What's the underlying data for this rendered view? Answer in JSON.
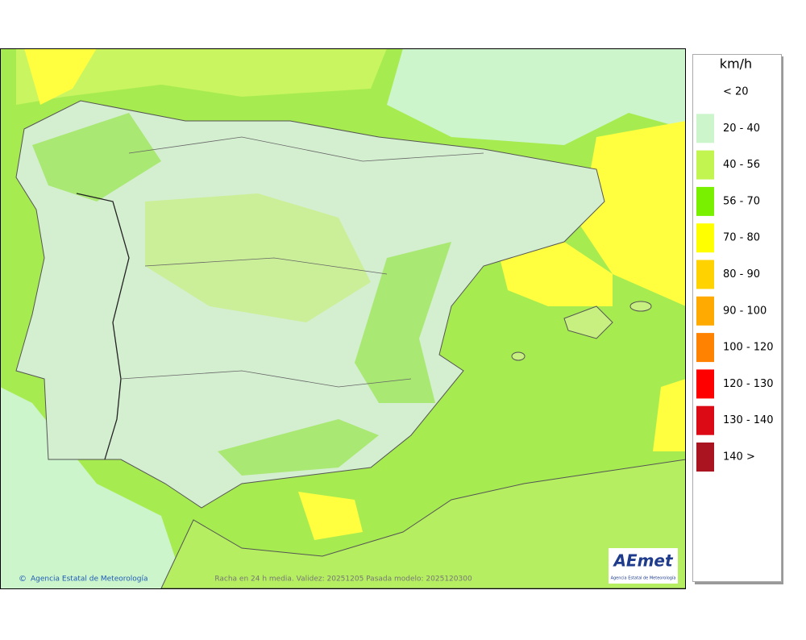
{
  "legend": {
    "title": "km/h",
    "items": [
      {
        "label": "< 20",
        "color": "#ffffff"
      },
      {
        "label": "20 - 40",
        "color": "#ccf5cc"
      },
      {
        "label": "40 - 56",
        "color": "#c3f550"
      },
      {
        "label": "56 - 70",
        "color": "#78f000"
      },
      {
        "label": "70 - 80",
        "color": "#ffff00"
      },
      {
        "label": "80 - 90",
        "color": "#ffd200"
      },
      {
        "label": "90 - 100",
        "color": "#ffaa00"
      },
      {
        "label": "100 - 120",
        "color": "#ff8200"
      },
      {
        "label": "120 - 130",
        "color": "#ff0000"
      },
      {
        "label": "130 - 140",
        "color": "#dc0a14"
      },
      {
        "label": "140 >",
        "color": "#aa1420"
      }
    ]
  },
  "footer": {
    "credit": "Agencia Estatal de Meteorología",
    "caption": "Racha en 24 h media. Validez: 20251205 Pasada modelo: 2025120300"
  },
  "logo": {
    "name": "AEmet",
    "subtitle": "Agencia Estatal de Meteorología"
  }
}
